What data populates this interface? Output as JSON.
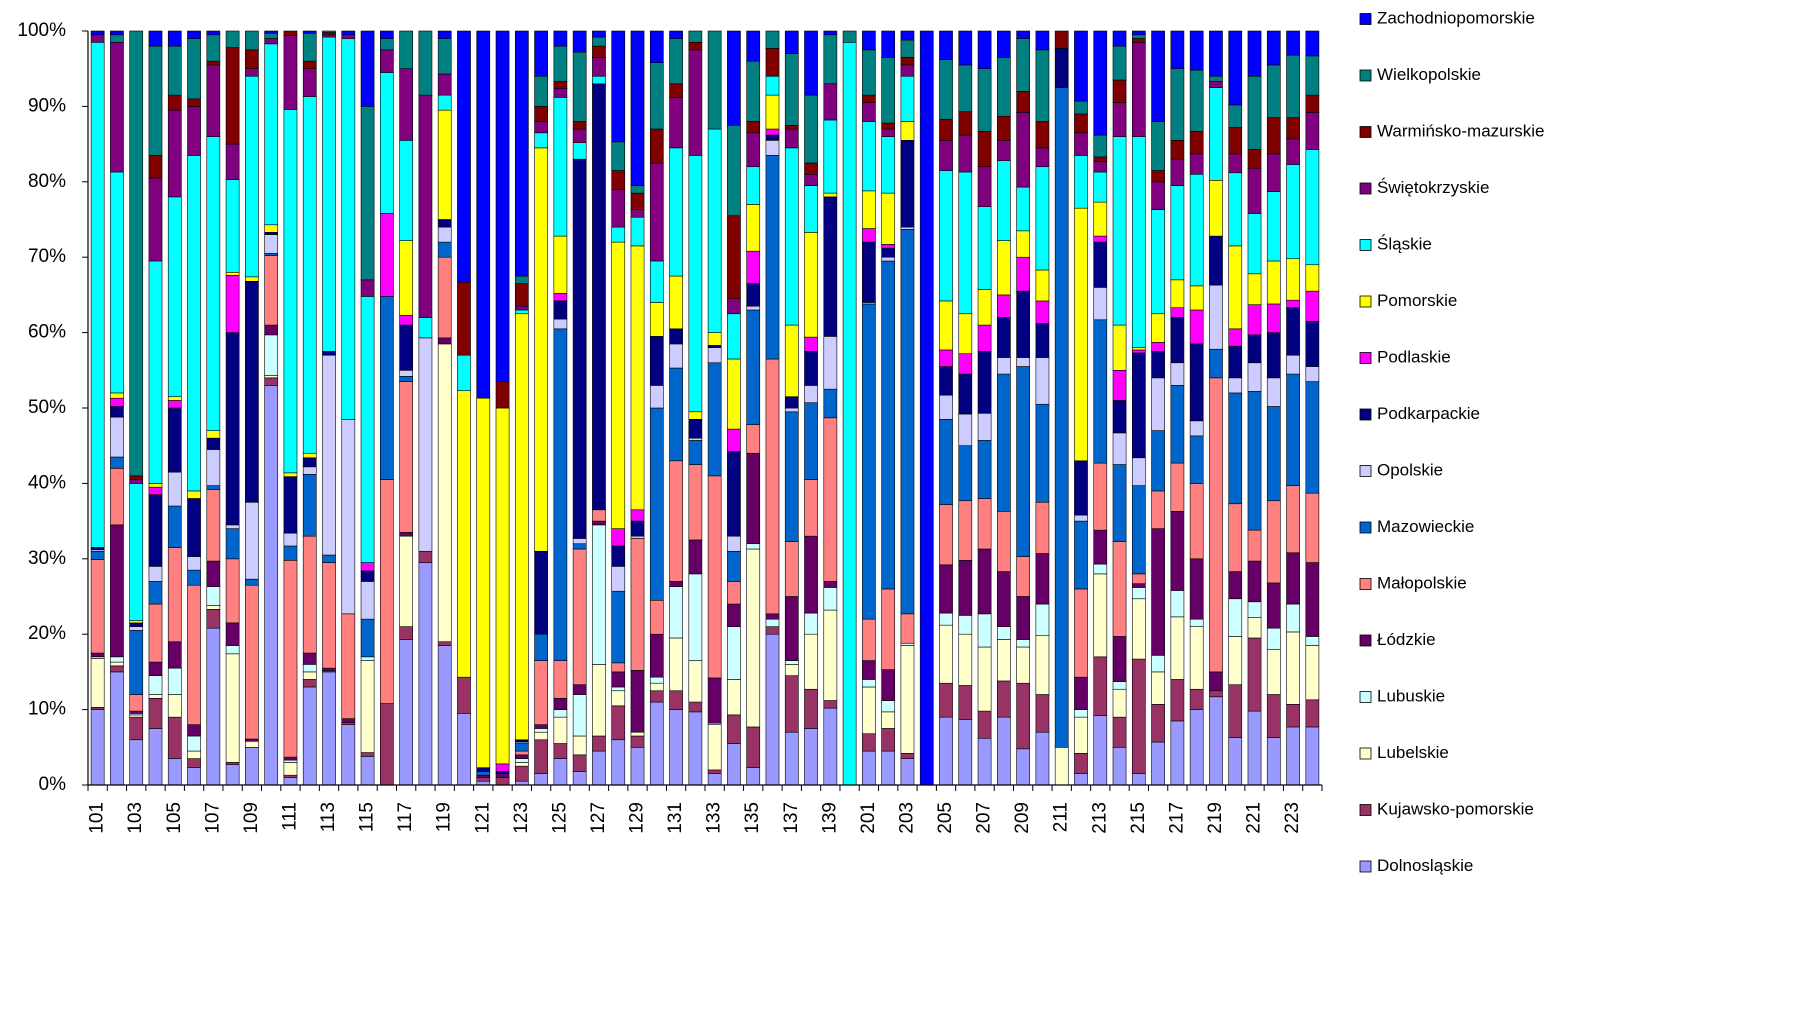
{
  "chart_data": {
    "type": "stacked_bar_percent",
    "categories": [
      "101",
      null,
      "103",
      null,
      "105",
      null,
      "107",
      null,
      "109",
      null,
      "111",
      null,
      "113",
      null,
      "115",
      null,
      "117",
      null,
      "119",
      null,
      "121",
      null,
      "123",
      null,
      "125",
      null,
      "127",
      null,
      "129",
      null,
      "131",
      null,
      "133",
      null,
      "135",
      null,
      "137",
      null,
      "139",
      null,
      "201",
      null,
      "203",
      null,
      "205",
      null,
      "207",
      null,
      "209",
      null,
      "211",
      null,
      "213",
      null,
      "215",
      null,
      "217",
      null,
      "219",
      null,
      "221",
      null,
      "223",
      null
    ],
    "ylim": [
      0,
      100
    ],
    "yticks": [
      {
        "value": 0,
        "label": "0%"
      },
      {
        "value": 10,
        "label": "10%"
      },
      {
        "value": 20,
        "label": "20%"
      },
      {
        "value": 30,
        "label": "30%"
      },
      {
        "value": 40,
        "label": "40%"
      },
      {
        "value": 50,
        "label": "50%"
      },
      {
        "value": 60,
        "label": "60%"
      },
      {
        "value": 70,
        "label": "70%"
      },
      {
        "value": 80,
        "label": "80%"
      },
      {
        "value": 90,
        "label": "90%"
      },
      {
        "value": 100,
        "label": "100%"
      }
    ],
    "grid": false,
    "legend": "right",
    "series": [
      {
        "name": "Dolnosląskie",
        "color": "#9999ff",
        "values": [
          10,
          15,
          6,
          7.5,
          3.5,
          2.3,
          20.8,
          2.7,
          5,
          53,
          1,
          13,
          15,
          8,
          3.8,
          0,
          19.3,
          29.5,
          18.5,
          9.5,
          0.5,
          0,
          0.5,
          1.5,
          3.5,
          1.8,
          4.5,
          6,
          5,
          11,
          10,
          9.7,
          1.5,
          5.5,
          2.3,
          20,
          7,
          7.5,
          10.2,
          0,
          4.5,
          4.5,
          3.5,
          0,
          9,
          8.7,
          6.2,
          9,
          4.8,
          7,
          0,
          1.5,
          9.2,
          5,
          1.5,
          5.7,
          8.5,
          10,
          11.7,
          6.3,
          9.8,
          6.3,
          7.7,
          7.7
        ]
      },
      {
        "name": "Kujawsko-pomorskie",
        "color": "#993366",
        "values": [
          0.3,
          0.8,
          3,
          4,
          5.5,
          1.2,
          2.5,
          0.3,
          0,
          1,
          0.3,
          1,
          0.2,
          0.3,
          0.5,
          10.8,
          1.7,
          1.5,
          0.5,
          4.8,
          0.5,
          1,
          2,
          4.5,
          2,
          2.2,
          2,
          4.5,
          1.5,
          1.5,
          2.5,
          1.3,
          0.5,
          3.8,
          5.4,
          1,
          7.5,
          5.2,
          1,
          0,
          2.3,
          3,
          0.7,
          0,
          4.5,
          4.5,
          3.6,
          4.8,
          8.7,
          5,
          0,
          2.7,
          7.8,
          4,
          15.2,
          5,
          5.5,
          2.7,
          0.8,
          7,
          9.7,
          5.7,
          3,
          3.6
        ]
      },
      {
        "name": "Lubelskie",
        "color": "#ffffcc",
        "values": [
          6.5,
          0.5,
          0.3,
          0.5,
          3,
          1,
          0.5,
          14.4,
          0.8,
          0.3,
          1.7,
          1,
          0,
          0,
          12.2,
          0,
          12,
          0,
          39.5,
          0,
          0,
          0,
          0.5,
          1,
          3.5,
          2.5,
          9.5,
          2,
          0.5,
          1,
          7,
          5.5,
          6,
          4.7,
          23.6,
          0,
          1.5,
          7.3,
          12,
          0,
          6.2,
          2.2,
          14.3,
          0,
          7.7,
          6.8,
          8.5,
          5.5,
          4.8,
          7.8,
          5,
          4.8,
          11,
          3.7,
          8,
          4.3,
          8.3,
          8.3,
          0,
          6.4,
          2.7,
          6,
          9.6,
          7.2
        ]
      },
      {
        "name": "Lubuskie",
        "color": "#ccffff",
        "values": [
          0.2,
          0.7,
          0.2,
          2.5,
          3.5,
          2,
          2.5,
          1.1,
          0,
          5.4,
          0.3,
          1,
          0,
          0,
          0.5,
          0,
          0,
          0,
          0,
          0,
          0,
          0,
          0.5,
          0.5,
          1,
          5.5,
          18.5,
          0.5,
          0,
          0.8,
          6.8,
          11.5,
          0.2,
          7,
          0.7,
          1,
          0.5,
          2.8,
          3,
          0,
          1,
          1.5,
          0.3,
          0,
          1.6,
          2.5,
          4.4,
          1.7,
          1,
          4.2,
          0,
          1,
          1.3,
          1,
          1.5,
          2.2,
          3.5,
          1,
          0,
          5,
          2.1,
          2.8,
          3.7,
          1.2
        ]
      },
      {
        "name": "Łódzkie",
        "color": "#660066",
        "values": [
          0.5,
          17.5,
          0.3,
          1.8,
          3.5,
          1.5,
          3.4,
          3,
          0.3,
          1.3,
          0.4,
          1.5,
          0.3,
          0.5,
          0,
          0,
          0.5,
          0,
          0.8,
          0,
          0.3,
          0.5,
          0.5,
          0.5,
          1.5,
          1.3,
          0.5,
          2,
          8.2,
          5.7,
          0.7,
          4.5,
          6,
          3,
          12,
          0.7,
          8.5,
          10.2,
          0.8,
          0,
          2.5,
          4.1,
          0,
          0,
          6.4,
          7.3,
          8.6,
          7.3,
          5.7,
          6.7,
          0,
          4.3,
          4.5,
          6,
          0.5,
          16.8,
          10.5,
          8,
          2.5,
          3.6,
          5.4,
          6,
          6.8,
          9.8
        ]
      },
      {
        "name": "Małopolskie",
        "color": "#ff8080",
        "values": [
          12.4,
          7.5,
          2.2,
          7.7,
          12.5,
          18.5,
          9.5,
          8.5,
          20.4,
          9.2,
          26.1,
          15.5,
          14,
          13.9,
          0,
          29.7,
          20,
          0,
          10.7,
          0,
          0,
          0,
          0.5,
          8.5,
          5,
          18,
          1.5,
          1.2,
          17.5,
          4.5,
          16,
          10,
          26.8,
          3,
          3.8,
          33.8,
          7.3,
          7.5,
          21.7,
          0,
          5.5,
          10.7,
          3.9,
          0,
          8,
          7.9,
          6.7,
          8,
          5.3,
          6.8,
          0,
          11.7,
          8.9,
          12.6,
          1.3,
          5,
          6.4,
          10,
          39,
          9,
          4.1,
          10.9,
          8.9,
          9.2
        ]
      },
      {
        "name": "Mazowieckie",
        "color": "#0066cc",
        "values": [
          1.1,
          1.5,
          8.5,
          3,
          5.5,
          2,
          0.5,
          4,
          0.8,
          0.3,
          1.9,
          8.2,
          1,
          0,
          5,
          24.3,
          0.7,
          0,
          2,
          0,
          0.5,
          0,
          1,
          3.5,
          44,
          0.7,
          0,
          9.5,
          0,
          25.5,
          12.3,
          3.2,
          15,
          4,
          15.2,
          27,
          17.2,
          10.2,
          3.8,
          0,
          41.8,
          43.5,
          51,
          0,
          11.3,
          7.3,
          7.7,
          18.2,
          25.2,
          13,
          87.5,
          9,
          19,
          10.2,
          11.7,
          8,
          10.3,
          6.3,
          3.8,
          14.7,
          18.4,
          12.5,
          14.8,
          14.8
        ]
      },
      {
        "name": "Opolskie",
        "color": "#ccccff",
        "values": [
          0.2,
          5.3,
          0.5,
          2,
          4.5,
          1.8,
          4.8,
          0.5,
          10.2,
          2.5,
          1.7,
          1,
          26.5,
          25.8,
          5,
          0,
          0.8,
          28.3,
          2,
          0,
          0,
          0,
          0.2,
          0,
          1.3,
          0.7,
          0,
          3.3,
          0.3,
          3,
          3.2,
          0.3,
          2,
          2,
          0.5,
          2,
          0.5,
          2.3,
          7,
          0,
          0.2,
          0.5,
          0.3,
          0,
          3.2,
          4.2,
          3.6,
          2.2,
          1.2,
          6.2,
          0,
          0.8,
          4.3,
          4.2,
          3.7,
          7,
          3,
          2,
          8.5,
          2,
          3.8,
          3.8,
          2.5,
          2
        ]
      },
      {
        "name": "Podkarpackie",
        "color": "#000080",
        "values": [
          0.3,
          1.4,
          0.5,
          9.5,
          8.5,
          7.7,
          1.5,
          25.5,
          29.3,
          0.3,
          7.5,
          1.2,
          0.5,
          0,
          1.4,
          0,
          6,
          0,
          1,
          0,
          0.5,
          0.3,
          0.3,
          11,
          2.4,
          50.3,
          56.5,
          2.7,
          2,
          6.5,
          2,
          2.5,
          0.3,
          11.2,
          3,
          0.7,
          1.5,
          4.5,
          18.5,
          0,
          8,
          1.2,
          11.5,
          0,
          3.8,
          5.3,
          8.2,
          5.3,
          8.8,
          4.5,
          5.2,
          7.2,
          6,
          4.3,
          13.9,
          3.5,
          6,
          10.2,
          6.5,
          4.2,
          3.7,
          6,
          6.3,
          6
        ]
      },
      {
        "name": "Podlaskie",
        "color": "#ff00ff",
        "values": [
          0,
          1.1,
          0,
          1,
          1,
          0,
          0,
          7.6,
          0,
          0,
          0,
          0,
          0,
          0,
          1.1,
          11,
          1.3,
          0,
          0,
          0,
          0,
          1,
          0,
          0,
          1,
          0,
          0,
          2.3,
          1.5,
          0,
          0,
          0,
          0,
          3,
          4.3,
          0.8,
          0,
          1.9,
          0,
          0,
          1.8,
          0.5,
          0,
          0,
          2.2,
          2.7,
          3.5,
          3,
          4.5,
          3,
          0,
          0,
          0.8,
          4,
          0.4,
          1.2,
          1.3,
          4.5,
          0,
          2.3,
          4,
          3.8,
          1,
          4
        ]
      },
      {
        "name": "Pomorskie",
        "color": "#ffff00",
        "values": [
          0,
          0.7,
          0.3,
          0.5,
          0.5,
          1,
          1,
          0.4,
          0.6,
          1,
          0.5,
          0.6,
          0,
          0,
          0,
          0,
          9.9,
          0,
          14.5,
          38,
          49,
          47.2,
          56.5,
          53.5,
          7.6,
          0,
          0,
          38,
          35,
          4.5,
          7,
          1,
          1.7,
          9.3,
          6.2,
          4.5,
          9.5,
          13.9,
          0.5,
          0,
          5,
          6.8,
          2.5,
          0,
          6.5,
          5.3,
          4.7,
          7.2,
          3.5,
          4.1,
          0,
          33.5,
          4.5,
          6,
          0.3,
          3.8,
          3.7,
          3.2,
          7.4,
          11,
          4.1,
          5.7,
          5.5,
          3.5
        ]
      },
      {
        "name": "Śląskie",
        "color": "#00ffff",
        "values": [
          67,
          29.3,
          18.2,
          29.5,
          26.5,
          44.5,
          39,
          12.3,
          26.6,
          24,
          48.2,
          47.3,
          41.7,
          50.5,
          35.3,
          18.7,
          13.3,
          2.7,
          2,
          4.7,
          0,
          0,
          0.5,
          2,
          18.4,
          2.2,
          1,
          2,
          3.8,
          5.5,
          17,
          34,
          27,
          6,
          5,
          2.5,
          23.5,
          6.2,
          9.7,
          98.5,
          9.2,
          7.5,
          6,
          0,
          17.3,
          18.8,
          11,
          10.6,
          5.8,
          13.7,
          0,
          7,
          4,
          25,
          28,
          13.8,
          12.5,
          14.8,
          12.3,
          9.7,
          8,
          9.2,
          12.5,
          15.3
        ]
      },
      {
        "name": "Świętokrzyskie",
        "color": "#800080",
        "values": [
          1,
          17.2,
          0.5,
          11,
          11.5,
          6.5,
          9.5,
          4.7,
          1,
          0.7,
          9.8,
          3.7,
          0.3,
          0.5,
          2.2,
          3,
          9.5,
          29.5,
          2.8,
          0,
          0,
          0,
          0.5,
          1.5,
          1.2,
          1.8,
          2.5,
          5,
          1,
          13,
          6.7,
          14,
          0,
          2,
          4.5,
          0,
          2.5,
          1.5,
          4.8,
          0,
          2.5,
          1,
          1.5,
          0,
          4,
          4.9,
          5.3,
          2.7,
          9.9,
          2.5,
          0,
          3,
          1.4,
          4.5,
          12.5,
          3.7,
          3.5,
          2.7,
          0.8,
          2.5,
          6,
          5,
          3.4,
          4.9
        ]
      },
      {
        "name": "Warmińsko-mazurskie",
        "color": "#800000",
        "values": [
          0,
          0,
          0.5,
          3,
          2,
          1,
          0.5,
          12.8,
          2.5,
          0,
          0.6,
          1,
          0.3,
          0,
          0,
          0,
          0,
          0,
          0,
          9.7,
          0,
          3.5,
          3,
          2,
          0.9,
          1,
          1.5,
          2.5,
          2.2,
          4.5,
          1.8,
          1,
          0,
          11,
          1.5,
          3.7,
          0.5,
          1.5,
          0,
          0,
          1,
          0.8,
          1,
          0,
          2.8,
          3.1,
          4.7,
          3.2,
          2.8,
          3.5,
          2.3,
          2.5,
          0.6,
          3,
          0.5,
          1.5,
          2.5,
          3,
          0,
          3.5,
          2.5,
          4.8,
          2.8,
          2.3
        ]
      },
      {
        "name": "Wielkopolskie",
        "color": "#008080",
        "values": [
          0,
          1,
          59,
          14.5,
          6.5,
          8,
          3.5,
          2.2,
          2.5,
          0.7,
          0,
          3.7,
          0.2,
          0,
          23,
          1.5,
          5,
          8.5,
          4.7,
          0,
          0,
          0,
          1,
          4,
          4.7,
          9.2,
          1.2,
          3.8,
          1,
          8.8,
          6,
          1.5,
          13,
          12,
          8,
          2.3,
          9.5,
          9,
          6.5,
          1.5,
          6,
          8.7,
          2.3,
          0,
          7.9,
          6.2,
          8.3,
          7.8,
          7,
          9.5,
          0,
          1.7,
          2.9,
          4.5,
          0.5,
          6.5,
          9.5,
          8.1,
          0.7,
          3,
          9.7,
          7,
          8.3,
          5.2
        ]
      },
      {
        "name": "Zachodniopomorskie",
        "color": "#0000ff",
        "values": [
          0.5,
          0.5,
          0,
          2,
          2,
          1,
          0.5,
          0,
          0,
          0.3,
          0,
          0.3,
          0,
          0.5,
          10,
          1,
          0,
          0,
          1,
          33.3,
          48.7,
          46.5,
          32.5,
          6,
          2,
          2.8,
          0.8,
          14.7,
          20.5,
          4.2,
          1,
          0,
          0,
          12.5,
          4,
          0,
          3,
          8.5,
          0.5,
          0,
          2.5,
          3.5,
          1.2,
          100,
          3.8,
          4.5,
          5,
          3.5,
          1,
          2.5,
          0,
          9.3,
          13.8,
          2,
          0.5,
          12,
          5,
          5.2,
          6,
          9.8,
          6,
          4.5,
          3.2,
          3.3
        ]
      }
    ]
  }
}
